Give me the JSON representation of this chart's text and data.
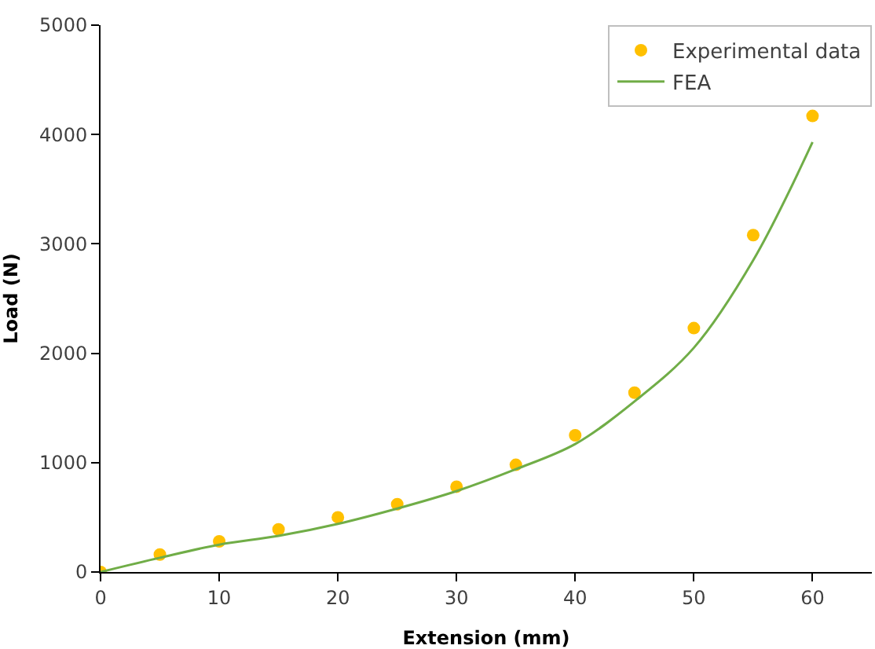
{
  "chart_data": {
    "type": "scatter",
    "xlabel": "Extension (mm)",
    "ylabel": "Load (N)",
    "xlim": [
      0,
      65
    ],
    "xticks": [
      0,
      10,
      20,
      30,
      40,
      50,
      60
    ],
    "ylim": [
      0,
      5000
    ],
    "yticks": [
      0,
      1000,
      2000,
      3000,
      4000,
      5000
    ],
    "legend": "top right",
    "series": [
      {
        "name": "Experimental data",
        "marker": "circle",
        "color": "#ffc000",
        "x": [
          0,
          5,
          10,
          15,
          20,
          25,
          30,
          35,
          40,
          45,
          50,
          55,
          60
        ],
        "values": [
          0,
          160,
          280,
          390,
          500,
          620,
          780,
          980,
          1250,
          1640,
          2230,
          3080,
          4170
        ]
      },
      {
        "name": "FEA",
        "type": "line",
        "marker": "none",
        "line_style": "solid",
        "color": "#70ad47",
        "x": [
          0,
          5,
          10,
          15,
          20,
          25,
          30,
          35,
          40,
          45,
          50,
          55,
          60
        ],
        "values": [
          0,
          130,
          250,
          330,
          440,
          580,
          740,
          940,
          1170,
          1560,
          2050,
          2850,
          3930
        ]
      }
    ]
  }
}
